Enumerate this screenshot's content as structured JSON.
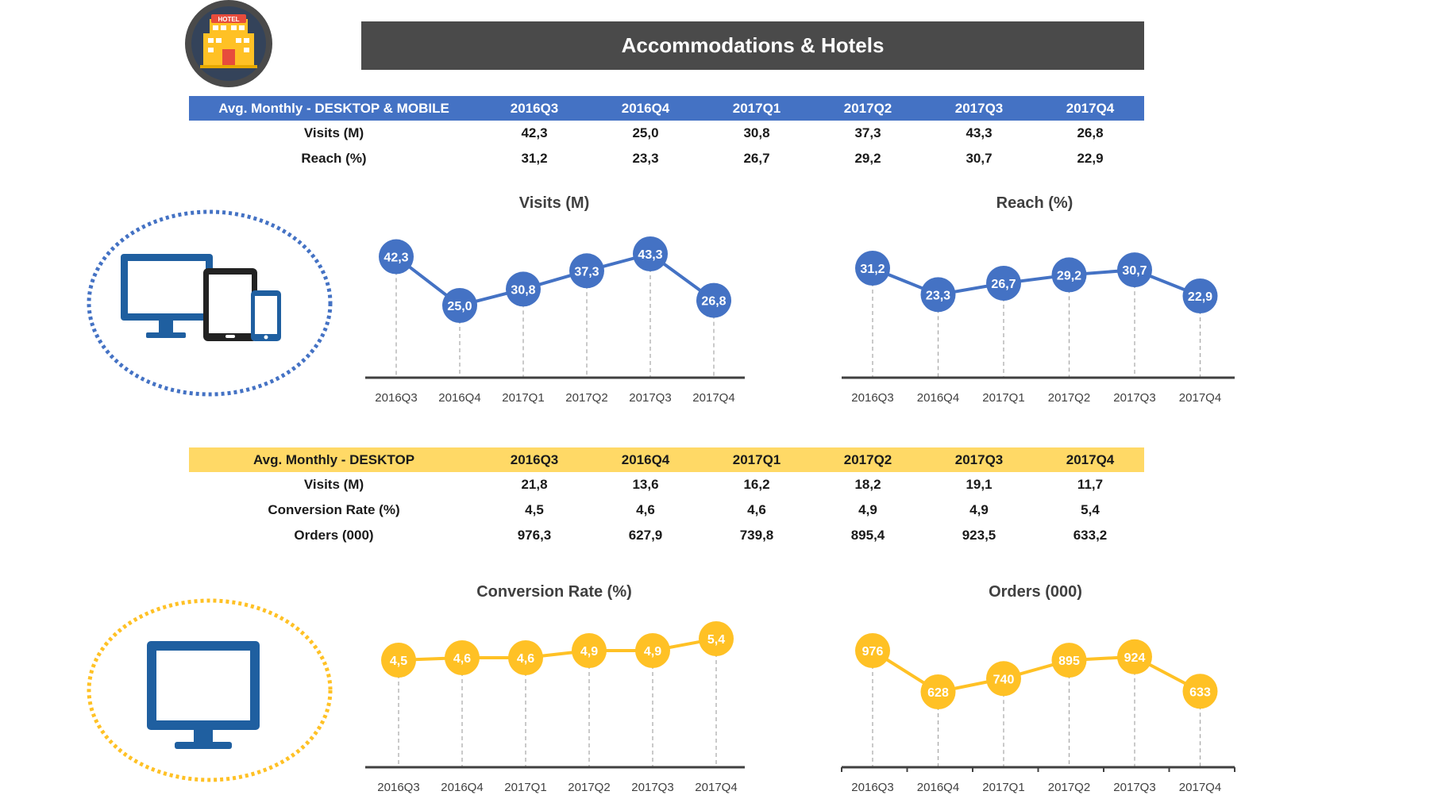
{
  "page_title": "Accommodations & Hotels",
  "icons": {
    "hotel": "hotel-building-icon",
    "hotel_sign": "HOTEL",
    "multi_device": "desktop-tablet-phone-icon",
    "desktop": "desktop-monitor-icon"
  },
  "colors": {
    "blue": "#4472c4",
    "yellow": "#ffc125",
    "dark": "#4a4a4a",
    "icon_blue": "#1f5fa0"
  },
  "tables": [
    {
      "header": "Avg. Monthly - DESKTOP & MOBILE",
      "columns": [
        "2016Q3",
        "2016Q4",
        "2017Q1",
        "2017Q2",
        "2017Q3",
        "2017Q4"
      ],
      "rows": [
        {
          "label": "Visits (M)",
          "values": [
            "42,3",
            "25,0",
            "30,8",
            "37,3",
            "43,3",
            "26,8"
          ]
        },
        {
          "label": "Reach (%)",
          "values": [
            "31,2",
            "23,3",
            "26,7",
            "29,2",
            "30,7",
            "22,9"
          ]
        }
      ]
    },
    {
      "header": "Avg. Monthly - DESKTOP",
      "columns": [
        "2016Q3",
        "2016Q4",
        "2017Q1",
        "2017Q2",
        "2017Q3",
        "2017Q4"
      ],
      "rows": [
        {
          "label": "Visits (M)",
          "values": [
            "21,8",
            "13,6",
            "16,2",
            "18,2",
            "19,1",
            "11,7"
          ]
        },
        {
          "label": "Conversion Rate (%)",
          "values": [
            "4,5",
            "4,6",
            "4,6",
            "4,9",
            "4,9",
            "5,4"
          ]
        },
        {
          "label": "Orders (000)",
          "values": [
            "976,3",
            "627,9",
            "739,8",
            "895,4",
            "923,5",
            "633,2"
          ]
        }
      ]
    }
  ],
  "chart_data": [
    {
      "type": "line",
      "title": "Visits (M)",
      "categories": [
        "2016Q3",
        "2016Q4",
        "2017Q1",
        "2017Q2",
        "2017Q3",
        "2017Q4"
      ],
      "values": [
        42.3,
        25.0,
        30.8,
        37.3,
        43.3,
        26.8
      ],
      "labels": [
        "42,3",
        "25,0",
        "30,8",
        "37,3",
        "43,3",
        "26,8"
      ],
      "color": "#4472c4",
      "grid": false,
      "legend": "none"
    },
    {
      "type": "line",
      "title": "Reach (%)",
      "categories": [
        "2016Q3",
        "2016Q4",
        "2017Q1",
        "2017Q2",
        "2017Q3",
        "2017Q4"
      ],
      "values": [
        31.2,
        23.3,
        26.7,
        29.2,
        30.7,
        22.9
      ],
      "labels": [
        "31,2",
        "23,3",
        "26,7",
        "29,2",
        "30,7",
        "22,9"
      ],
      "color": "#4472c4",
      "grid": false,
      "legend": "none"
    },
    {
      "type": "line",
      "title": "Conversion Rate (%)",
      "categories": [
        "2016Q3",
        "2016Q4",
        "2017Q1",
        "2017Q2",
        "2017Q3",
        "2017Q4"
      ],
      "values": [
        4.5,
        4.6,
        4.6,
        4.9,
        4.9,
        5.4
      ],
      "labels": [
        "4,5",
        "4,6",
        "4,6",
        "4,9",
        "4,9",
        "5,4"
      ],
      "color": "#ffc125",
      "grid": false,
      "legend": "none"
    },
    {
      "type": "line",
      "title": "Orders (000)",
      "categories": [
        "2016Q3",
        "2016Q4",
        "2017Q1",
        "2017Q2",
        "2017Q3",
        "2017Q4"
      ],
      "values": [
        976,
        628,
        740,
        895,
        924,
        633
      ],
      "labels": [
        "976",
        "628",
        "740",
        "895",
        "924",
        "633"
      ],
      "color": "#ffc125",
      "grid": false,
      "legend": "none"
    }
  ]
}
